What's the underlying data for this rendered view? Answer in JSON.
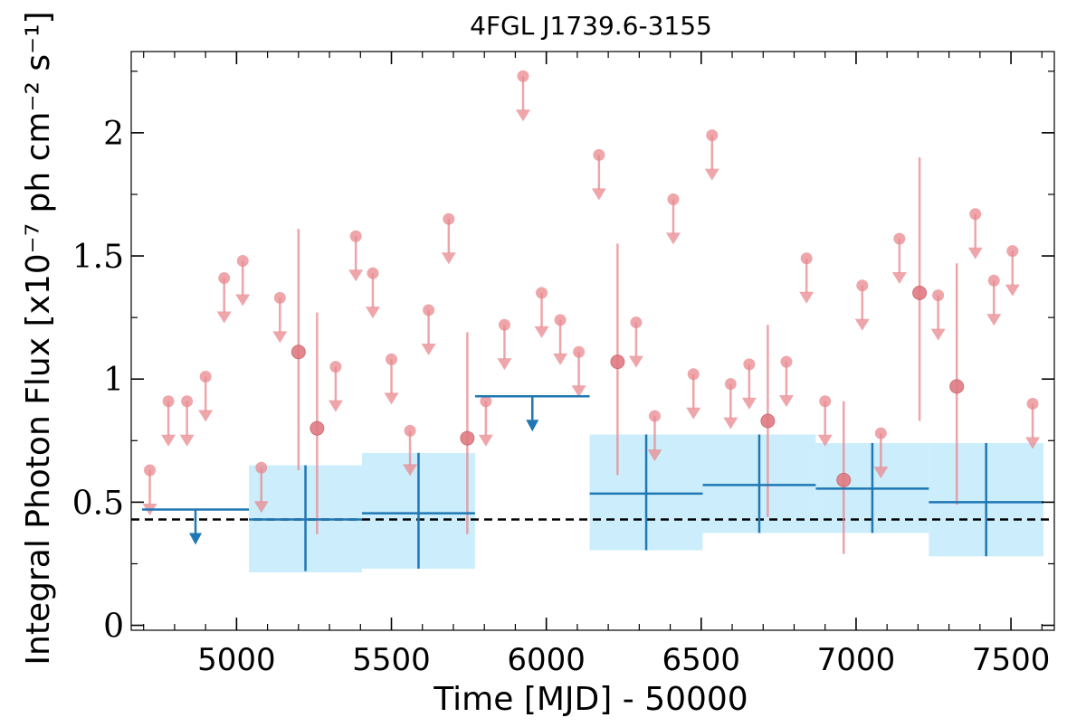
{
  "chart_data": {
    "type": "scatter",
    "title": "4FGL J1739.6-3155",
    "xlabel": "Time [MJD] - 50000",
    "ylabel": "Integral Photon Flux [x10⁻⁷ ph cm⁻² s⁻¹]",
    "xlim": [
      4660,
      7640
    ],
    "ylim": [
      -0.02,
      2.33
    ],
    "xticks": [
      5000,
      5500,
      6000,
      6500,
      7000,
      7500
    ],
    "yticks": [
      0,
      0.5,
      1,
      1.5,
      2
    ],
    "ytick_labels": [
      "0",
      "0.5",
      "1",
      "1.5",
      "2"
    ],
    "grid": false,
    "colors": {
      "short_bins": "#e8888e",
      "long_bins": "#1f77b4",
      "long_band": "#cceefc",
      "average": "#000000"
    },
    "average_flux": 0.43,
    "long_bins": [
      {
        "x0": 4695,
        "x1": 5040,
        "upper_limit": 0.47
      },
      {
        "x0": 5040,
        "x1": 5405,
        "flux": 0.43,
        "lo": 0.22,
        "hi": 0.65,
        "band_lo": 0.215,
        "band_hi": 0.65
      },
      {
        "x0": 5405,
        "x1": 5770,
        "flux": 0.455,
        "lo": 0.23,
        "hi": 0.7,
        "band_lo": 0.23,
        "band_hi": 0.7
      },
      {
        "x0": 5770,
        "x1": 6140,
        "upper_limit": 0.93
      },
      {
        "x0": 6140,
        "x1": 6505,
        "flux": 0.535,
        "lo": 0.305,
        "hi": 0.775,
        "band_lo": 0.305,
        "band_hi": 0.775
      },
      {
        "x0": 6505,
        "x1": 6870,
        "flux": 0.57,
        "lo": 0.375,
        "hi": 0.775,
        "band_lo": 0.375,
        "band_hi": 0.775
      },
      {
        "x0": 6870,
        "x1": 7235,
        "flux": 0.555,
        "lo": 0.375,
        "hi": 0.74,
        "band_lo": 0.375,
        "band_hi": 0.74
      },
      {
        "x0": 7235,
        "x1": 7605,
        "flux": 0.5,
        "lo": 0.28,
        "hi": 0.74,
        "band_lo": 0.28,
        "band_hi": 0.74
      }
    ],
    "short_bins": [
      {
        "x": 4720,
        "upper_limit": 0.63
      },
      {
        "x": 4780,
        "upper_limit": 0.91
      },
      {
        "x": 4840,
        "upper_limit": 0.91
      },
      {
        "x": 4900,
        "upper_limit": 1.01
      },
      {
        "x": 4960,
        "upper_limit": 1.41
      },
      {
        "x": 5020,
        "upper_limit": 1.48
      },
      {
        "x": 5080,
        "upper_limit": 0.64
      },
      {
        "x": 5140,
        "upper_limit": 1.33
      },
      {
        "x": 5200,
        "flux": 1.11,
        "lo": 0.63,
        "hi": 1.61
      },
      {
        "x": 5260,
        "flux": 0.8,
        "lo": 0.37,
        "hi": 1.27
      },
      {
        "x": 5320,
        "upper_limit": 1.05
      },
      {
        "x": 5385,
        "upper_limit": 1.58
      },
      {
        "x": 5440,
        "upper_limit": 1.43
      },
      {
        "x": 5500,
        "upper_limit": 1.08
      },
      {
        "x": 5560,
        "upper_limit": 0.79
      },
      {
        "x": 5620,
        "upper_limit": 1.28
      },
      {
        "x": 5685,
        "upper_limit": 1.65
      },
      {
        "x": 5745,
        "flux": 0.76,
        "lo": 0.37,
        "hi": 1.19
      },
      {
        "x": 5805,
        "upper_limit": 0.91
      },
      {
        "x": 5865,
        "upper_limit": 1.22
      },
      {
        "x": 5925,
        "upper_limit": 2.23
      },
      {
        "x": 5985,
        "upper_limit": 1.35
      },
      {
        "x": 6045,
        "upper_limit": 1.24
      },
      {
        "x": 6105,
        "upper_limit": 1.11
      },
      {
        "x": 6170,
        "upper_limit": 1.91
      },
      {
        "x": 6230,
        "flux": 1.07,
        "lo": 0.61,
        "hi": 1.55
      },
      {
        "x": 6290,
        "upper_limit": 1.23
      },
      {
        "x": 6350,
        "upper_limit": 0.85
      },
      {
        "x": 6410,
        "upper_limit": 1.73
      },
      {
        "x": 6475,
        "upper_limit": 1.02
      },
      {
        "x": 6535,
        "upper_limit": 1.99
      },
      {
        "x": 6595,
        "upper_limit": 0.98
      },
      {
        "x": 6655,
        "upper_limit": 1.06
      },
      {
        "x": 6715,
        "flux": 0.83,
        "lo": 0.44,
        "hi": 1.22
      },
      {
        "x": 6775,
        "upper_limit": 1.07
      },
      {
        "x": 6840,
        "upper_limit": 1.49
      },
      {
        "x": 6900,
        "upper_limit": 0.91
      },
      {
        "x": 6960,
        "flux": 0.59,
        "lo": 0.29,
        "hi": 0.91
      },
      {
        "x": 7020,
        "upper_limit": 1.38
      },
      {
        "x": 7080,
        "upper_limit": 0.78
      },
      {
        "x": 7140,
        "upper_limit": 1.57
      },
      {
        "x": 7205,
        "flux": 1.35,
        "lo": 0.83,
        "hi": 1.9
      },
      {
        "x": 7265,
        "upper_limit": 1.34
      },
      {
        "x": 7325,
        "flux": 0.97,
        "lo": 0.49,
        "hi": 1.47
      },
      {
        "x": 7385,
        "upper_limit": 1.67
      },
      {
        "x": 7445,
        "upper_limit": 1.4
      },
      {
        "x": 7505,
        "upper_limit": 1.52
      },
      {
        "x": 7570,
        "upper_limit": 0.9
      }
    ]
  }
}
